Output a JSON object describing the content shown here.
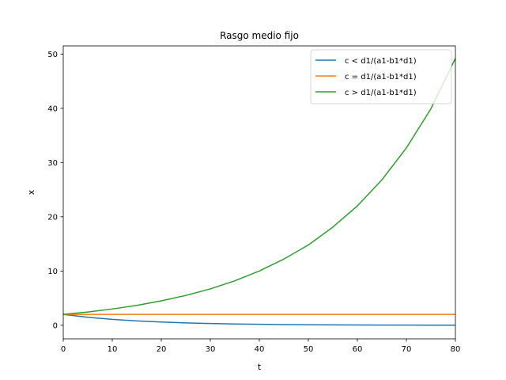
{
  "chart_data": {
    "type": "line",
    "title": "Rasgo medio fijo",
    "xlabel": "t",
    "ylabel": "x",
    "xlim": [
      0,
      80
    ],
    "ylim": [
      -2.5,
      51.5
    ],
    "xticks": [
      0,
      10,
      20,
      30,
      40,
      50,
      60,
      70,
      80
    ],
    "yticks": [
      0,
      10,
      20,
      30,
      40,
      50
    ],
    "grid": false,
    "legend_position": "top-right",
    "x": [
      0,
      5,
      10,
      15,
      20,
      25,
      30,
      35,
      40,
      45,
      50,
      55,
      60,
      65,
      70,
      75,
      80
    ],
    "series": [
      {
        "name": "c < d1/(a1-b1*d1)",
        "color": "#1f77b4",
        "values": [
          2.0,
          1.48,
          1.09,
          0.81,
          0.6,
          0.44,
          0.33,
          0.24,
          0.18,
          0.13,
          0.1,
          0.07,
          0.05,
          0.04,
          0.03,
          0.02,
          0.02
        ]
      },
      {
        "name": "c = d1/(a1-b1*d1)",
        "color": "#ff7f0e",
        "values": [
          2.0,
          2.0,
          2.0,
          2.0,
          2.0,
          2.0,
          2.0,
          2.0,
          2.0,
          2.0,
          2.0,
          2.0,
          2.0,
          2.0,
          2.0,
          2.0,
          2.0
        ]
      },
      {
        "name": "c > d1/(a1-b1*d1)",
        "color": "#2ca02c",
        "values": [
          2.0,
          2.44,
          3.0,
          3.67,
          4.5,
          5.5,
          6.7,
          8.2,
          10.0,
          12.2,
          14.8,
          18.1,
          22.0,
          26.8,
          32.7,
          39.9,
          49.2
        ]
      }
    ]
  }
}
